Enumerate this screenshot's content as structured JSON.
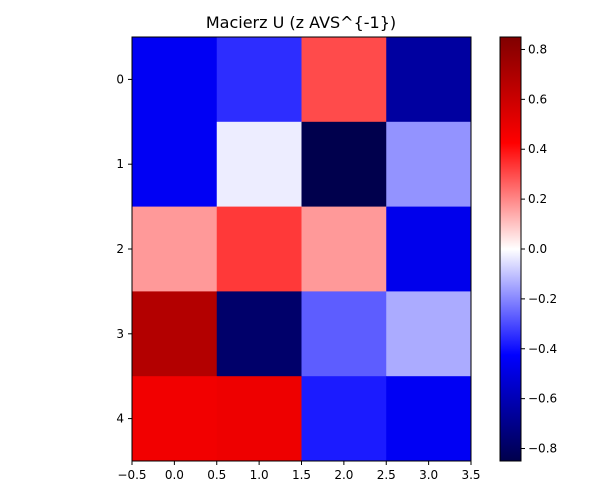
{
  "chart_data": {
    "type": "heatmap",
    "title": "Macierz U (z AVS^{-1})",
    "colormap": "seismic",
    "vmin": -0.85,
    "vmax": 0.85,
    "x_ticks": [
      "−0.5",
      "0.0",
      "0.5",
      "1.0",
      "1.5",
      "2.0",
      "2.5",
      "3.0",
      "3.5"
    ],
    "y_ticks": [
      "0",
      "1",
      "2",
      "3",
      "4"
    ],
    "colorbar_ticks": [
      {
        "value": 0.8,
        "label": "0.8"
      },
      {
        "value": 0.6,
        "label": "0.6"
      },
      {
        "value": 0.4,
        "label": "0.4"
      },
      {
        "value": 0.2,
        "label": "0.2"
      },
      {
        "value": 0.0,
        "label": "0.0"
      },
      {
        "value": -0.2,
        "label": "−0.2"
      },
      {
        "value": -0.4,
        "label": "−0.4"
      },
      {
        "value": -0.6,
        "label": "−0.6"
      },
      {
        "value": -0.8,
        "label": "−0.8"
      }
    ],
    "xlim": [
      -0.5,
      3.5
    ],
    "ylim": [
      -0.5,
      4.5
    ],
    "rows": 5,
    "cols": 4,
    "values": [
      [
        -0.45,
        -0.35,
        0.3,
        -0.65
      ],
      [
        -0.45,
        -0.03,
        -0.85,
        -0.18
      ],
      [
        0.17,
        0.33,
        0.17,
        -0.47
      ],
      [
        0.68,
        -0.78,
        -0.27,
        -0.14
      ],
      [
        0.47,
        0.48,
        -0.38,
        -0.45
      ]
    ]
  }
}
